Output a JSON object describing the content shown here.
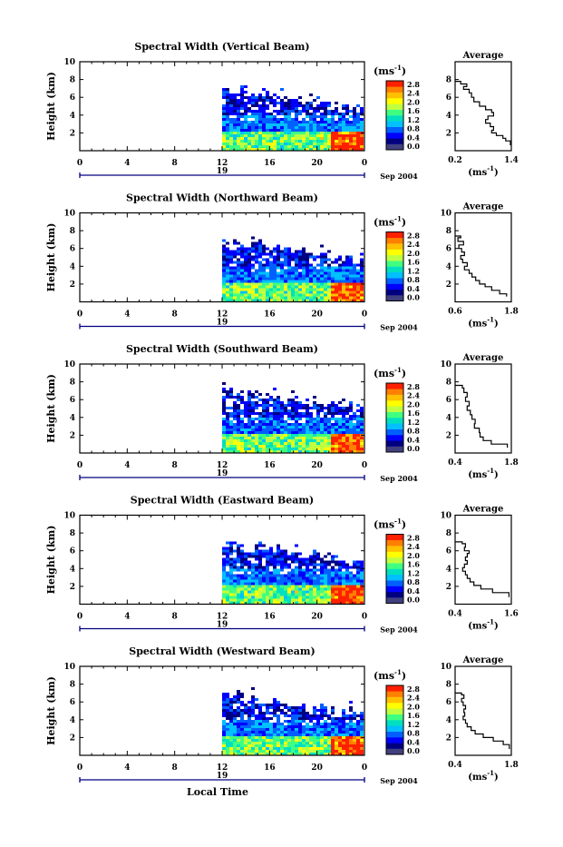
{
  "x_axis_label": "Local Time",
  "colorbar": {
    "unit_label": "(ms",
    "unit_sup": "-1",
    "unit_close": ")",
    "ticks": [
      "2.8",
      "2.4",
      "2.0",
      "1.6",
      "1.2",
      "0.8",
      "0.4",
      "0.0"
    ],
    "colors": [
      "#404080",
      "#000080",
      "#0000ff",
      "#0060ff",
      "#00c0ff",
      "#00e0c0",
      "#40ff80",
      "#c0ff40",
      "#ffff00",
      "#ffc000",
      "#ff8000",
      "#ff2000"
    ]
  },
  "chart_data": [
    {
      "type": "heatmap",
      "title": "Spectral Width (Vertical Beam)",
      "ylabel": "Height (km)",
      "xlabel": "Local Time",
      "x_ticks": [
        "0",
        "4",
        "8",
        "12",
        "16",
        "20",
        "0"
      ],
      "y_ticks": [
        "2",
        "4",
        "6",
        "8",
        "10"
      ],
      "ylim": [
        0,
        10
      ],
      "xlim": [
        0,
        24
      ],
      "date_marker": "19",
      "date_label": "Sep 2004",
      "data_start_hour": 12,
      "cloud_top_km": 7.0,
      "profile": {
        "title": "Average",
        "xlabel": "(ms",
        "xlabel_sup": "-1",
        "xlabel_close": ")",
        "x_ticks": [
          "0.2",
          "1.4"
        ],
        "xlim": [
          0.2,
          1.4
        ],
        "y_ticks": [
          "2",
          "4",
          "6",
          "8"
        ],
        "ylim": [
          0,
          10
        ],
        "points": [
          [
            0.2,
            7.8
          ],
          [
            0.32,
            7.5
          ],
          [
            0.45,
            7.2
          ],
          [
            0.38,
            6.9
          ],
          [
            0.5,
            6.5
          ],
          [
            0.55,
            6.0
          ],
          [
            0.6,
            5.5
          ],
          [
            0.72,
            5.0
          ],
          [
            0.85,
            4.6
          ],
          [
            0.98,
            4.3
          ],
          [
            1.02,
            3.9
          ],
          [
            0.9,
            3.5
          ],
          [
            0.85,
            3.1
          ],
          [
            0.95,
            2.7
          ],
          [
            1.02,
            2.3
          ],
          [
            0.98,
            2.0
          ],
          [
            1.08,
            1.7
          ],
          [
            1.22,
            1.4
          ],
          [
            1.28,
            1.1
          ],
          [
            1.38,
            0.6
          ]
        ]
      }
    },
    {
      "type": "heatmap",
      "title": "Spectral Width (Northward Beam)",
      "ylabel": "Height (km)",
      "xlabel": "Local Time",
      "x_ticks": [
        "0",
        "4",
        "8",
        "12",
        "16",
        "20",
        "0"
      ],
      "y_ticks": [
        "2",
        "4",
        "6",
        "8",
        "10"
      ],
      "ylim": [
        0,
        10
      ],
      "xlim": [
        0,
        24
      ],
      "date_marker": "19",
      "date_label": "Sep 2004",
      "data_start_hour": 12,
      "cloud_top_km": 7.0,
      "profile": {
        "title": "Average",
        "xlabel": "(ms",
        "xlabel_sup": "-1",
        "xlabel_close": ")",
        "x_ticks": [
          "0.6",
          "1.8"
        ],
        "xlim": [
          0.6,
          1.8
        ],
        "y_ticks": [
          "2",
          "4",
          "6",
          "8",
          "10"
        ],
        "ylim": [
          0,
          10
        ],
        "points": [
          [
            0.6,
            7.4
          ],
          [
            0.72,
            7.2
          ],
          [
            0.66,
            6.8
          ],
          [
            0.78,
            6.4
          ],
          [
            0.68,
            6.0
          ],
          [
            0.74,
            5.6
          ],
          [
            0.8,
            5.2
          ],
          [
            0.72,
            4.8
          ],
          [
            0.76,
            4.4
          ],
          [
            0.86,
            4.0
          ],
          [
            0.8,
            3.6
          ],
          [
            0.9,
            3.2
          ],
          [
            0.96,
            2.8
          ],
          [
            1.04,
            2.4
          ],
          [
            1.12,
            2.0
          ],
          [
            1.24,
            1.7
          ],
          [
            1.38,
            1.3
          ],
          [
            1.55,
            0.9
          ],
          [
            1.7,
            0.6
          ]
        ]
      }
    },
    {
      "type": "heatmap",
      "title": "Spectral Width (Southward Beam)",
      "ylabel": "Height (km)",
      "xlabel": "Local Time",
      "x_ticks": [
        "0",
        "4",
        "8",
        "12",
        "16",
        "20",
        "0"
      ],
      "y_ticks": [
        "2",
        "4",
        "6",
        "8",
        "10"
      ],
      "ylim": [
        0,
        10
      ],
      "xlim": [
        0,
        24
      ],
      "date_marker": "19",
      "date_label": "Sep 2004",
      "data_start_hour": 12,
      "cloud_top_km": 7.2,
      "profile": {
        "title": "Average",
        "xlabel": "(ms",
        "xlabel_sup": "-1",
        "xlabel_close": ")",
        "x_ticks": [
          "0.4",
          "1.8"
        ],
        "xlim": [
          0.4,
          1.8
        ],
        "y_ticks": [
          "2",
          "4",
          "6",
          "8",
          "10"
        ],
        "ylim": [
          0,
          10
        ],
        "points": [
          [
            0.4,
            7.6
          ],
          [
            0.58,
            7.3
          ],
          [
            0.62,
            6.8
          ],
          [
            0.7,
            6.3
          ],
          [
            0.66,
            5.8
          ],
          [
            0.75,
            5.3
          ],
          [
            0.7,
            4.8
          ],
          [
            0.78,
            4.3
          ],
          [
            0.82,
            3.8
          ],
          [
            0.9,
            3.3
          ],
          [
            0.88,
            2.8
          ],
          [
            1.0,
            2.3
          ],
          [
            1.02,
            1.8
          ],
          [
            1.1,
            1.4
          ],
          [
            1.3,
            1.0
          ],
          [
            1.7,
            0.6
          ]
        ]
      }
    },
    {
      "type": "heatmap",
      "title": "Spectral Width (Eastward Beam)",
      "ylabel": "Height (km)",
      "xlabel": "Local Time",
      "x_ticks": [
        "0",
        "4",
        "8",
        "12",
        "16",
        "20",
        "0"
      ],
      "y_ticks": [
        "2",
        "4",
        "6",
        "8",
        "10"
      ],
      "ylim": [
        0,
        10
      ],
      "xlim": [
        0,
        24
      ],
      "date_marker": "19",
      "date_label": "Sep 2004",
      "data_start_hour": 12,
      "cloud_top_km": 7.0,
      "profile": {
        "title": "Average",
        "xlabel": "(ms",
        "xlabel_sup": "-1",
        "xlabel_close": ")",
        "x_ticks": [
          "0.4",
          "1.6"
        ],
        "xlim": [
          0.4,
          1.6
        ],
        "y_ticks": [
          "2",
          "4",
          "6",
          "8",
          "10"
        ],
        "ylim": [
          0,
          10
        ],
        "points": [
          [
            0.4,
            7.0
          ],
          [
            0.55,
            6.8
          ],
          [
            0.62,
            6.4
          ],
          [
            0.6,
            6.0
          ],
          [
            0.7,
            5.7
          ],
          [
            0.66,
            5.3
          ],
          [
            0.62,
            4.9
          ],
          [
            0.66,
            4.5
          ],
          [
            0.6,
            4.1
          ],
          [
            0.56,
            3.7
          ],
          [
            0.62,
            3.3
          ],
          [
            0.66,
            2.9
          ],
          [
            0.72,
            2.5
          ],
          [
            0.8,
            2.1
          ],
          [
            0.95,
            1.7
          ],
          [
            1.2,
            1.3
          ],
          [
            1.55,
            0.8
          ]
        ]
      }
    },
    {
      "type": "heatmap",
      "title": "Spectral Width (Westward Beam)",
      "ylabel": "Height (km)",
      "xlabel": "Local Time",
      "x_ticks": [
        "0",
        "4",
        "8",
        "12",
        "16",
        "20",
        "0"
      ],
      "y_ticks": [
        "2",
        "4",
        "6",
        "8",
        "10"
      ],
      "ylim": [
        0,
        10
      ],
      "xlim": [
        0,
        24
      ],
      "date_marker": "19",
      "date_label": "Sep 2004",
      "data_start_hour": 12,
      "cloud_top_km": 7.0,
      "profile": {
        "title": "Average",
        "xlabel": "(ms",
        "xlabel_sup": "-1",
        "xlabel_close": ")",
        "x_ticks": [
          "0.4",
          "1.8"
        ],
        "xlim": [
          0.4,
          1.8
        ],
        "y_ticks": [
          "2",
          "4",
          "6",
          "8",
          "10"
        ],
        "ylim": [
          0,
          10
        ],
        "points": [
          [
            0.4,
            7.0
          ],
          [
            0.56,
            6.8
          ],
          [
            0.62,
            6.4
          ],
          [
            0.56,
            6.0
          ],
          [
            0.6,
            5.6
          ],
          [
            0.66,
            5.2
          ],
          [
            0.62,
            4.8
          ],
          [
            0.64,
            4.4
          ],
          [
            0.6,
            4.0
          ],
          [
            0.66,
            3.6
          ],
          [
            0.7,
            3.2
          ],
          [
            0.8,
            2.8
          ],
          [
            0.9,
            2.4
          ],
          [
            1.1,
            2.0
          ],
          [
            1.35,
            1.6
          ],
          [
            1.6,
            1.2
          ],
          [
            1.75,
            0.7
          ]
        ]
      }
    }
  ]
}
